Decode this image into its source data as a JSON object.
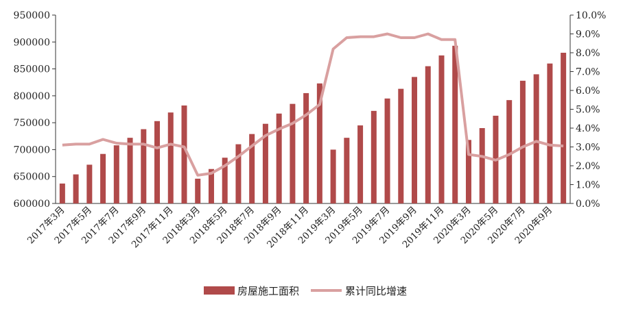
{
  "chart_data": {
    "type": "bar",
    "categories": [
      "2017年3月",
      "2017年4月",
      "2017年5月",
      "2017年6月",
      "2017年7月",
      "2017年8月",
      "2017年9月",
      "2017年10月",
      "2017年11月",
      "2017年12月",
      "2018年3月",
      "2018年4月",
      "2018年5月",
      "2018年6月",
      "2018年7月",
      "2018年8月",
      "2018年9月",
      "2018年10月",
      "2018年11月",
      "2018年12月",
      "2019年3月",
      "2019年4月",
      "2019年5月",
      "2019年6月",
      "2019年7月",
      "2019年8月",
      "2019年9月",
      "2019年10月",
      "2019年11月",
      "2019年12月",
      "2020年3月",
      "2020年4月",
      "2020年5月",
      "2020年6月",
      "2020年7月",
      "2020年8月",
      "2020年9月",
      "2020年10月"
    ],
    "x_tick_labels": [
      "2017年3月",
      "2017年5月",
      "2017年7月",
      "2017年9月",
      "2017年11月",
      "2018年3月",
      "2018年5月",
      "2018年7月",
      "2018年9月",
      "2018年11月",
      "2019年3月",
      "2019年5月",
      "2019年7月",
      "2019年9月",
      "2019年11月",
      "2020年3月",
      "2020年5月",
      "2020年7月",
      "2020年9月"
    ],
    "series": [
      {
        "name": "房屋施工面积",
        "type": "bar",
        "axis": "left",
        "color": "#b04a4a",
        "values": [
          637000,
          654000,
          672000,
          692000,
          708000,
          722000,
          738000,
          753000,
          769000,
          782000,
          646000,
          664000,
          685000,
          710000,
          729000,
          748000,
          767000,
          785000,
          805000,
          823000,
          700000,
          722000,
          745000,
          772000,
          795000,
          813000,
          835000,
          855000,
          875000,
          893000,
          718000,
          740000,
          763000,
          792000,
          828000,
          840000,
          860000,
          880000
        ]
      },
      {
        "name": "累计同比增速",
        "type": "line",
        "axis": "right",
        "color": "#d9a0a0",
        "values": [
          0.031,
          0.0315,
          0.0315,
          0.034,
          0.032,
          0.0315,
          0.0315,
          0.0295,
          0.0315,
          0.03,
          0.015,
          0.016,
          0.02,
          0.025,
          0.0305,
          0.036,
          0.0395,
          0.0425,
          0.047,
          0.0525,
          0.082,
          0.088,
          0.0885,
          0.0885,
          0.09,
          0.088,
          0.088,
          0.09,
          0.087,
          0.087,
          0.026,
          0.025,
          0.023,
          0.026,
          0.03,
          0.033,
          0.031,
          0.0305
        ]
      }
    ],
    "y_left": {
      "min": 600000,
      "max": 950000,
      "ticks": [
        "600000",
        "650000",
        "700000",
        "750000",
        "800000",
        "850000",
        "900000",
        "950000"
      ]
    },
    "y_right": {
      "min": 0,
      "max": 0.1,
      "ticks": [
        "0.0%",
        "1.0%",
        "2.0%",
        "3.0%",
        "4.0%",
        "5.0%",
        "6.0%",
        "7.0%",
        "8.0%",
        "9.0%",
        "10.0%"
      ]
    },
    "grid": false,
    "legend_position": "bottom",
    "title": "",
    "xlabel": "",
    "ylabel": ""
  }
}
